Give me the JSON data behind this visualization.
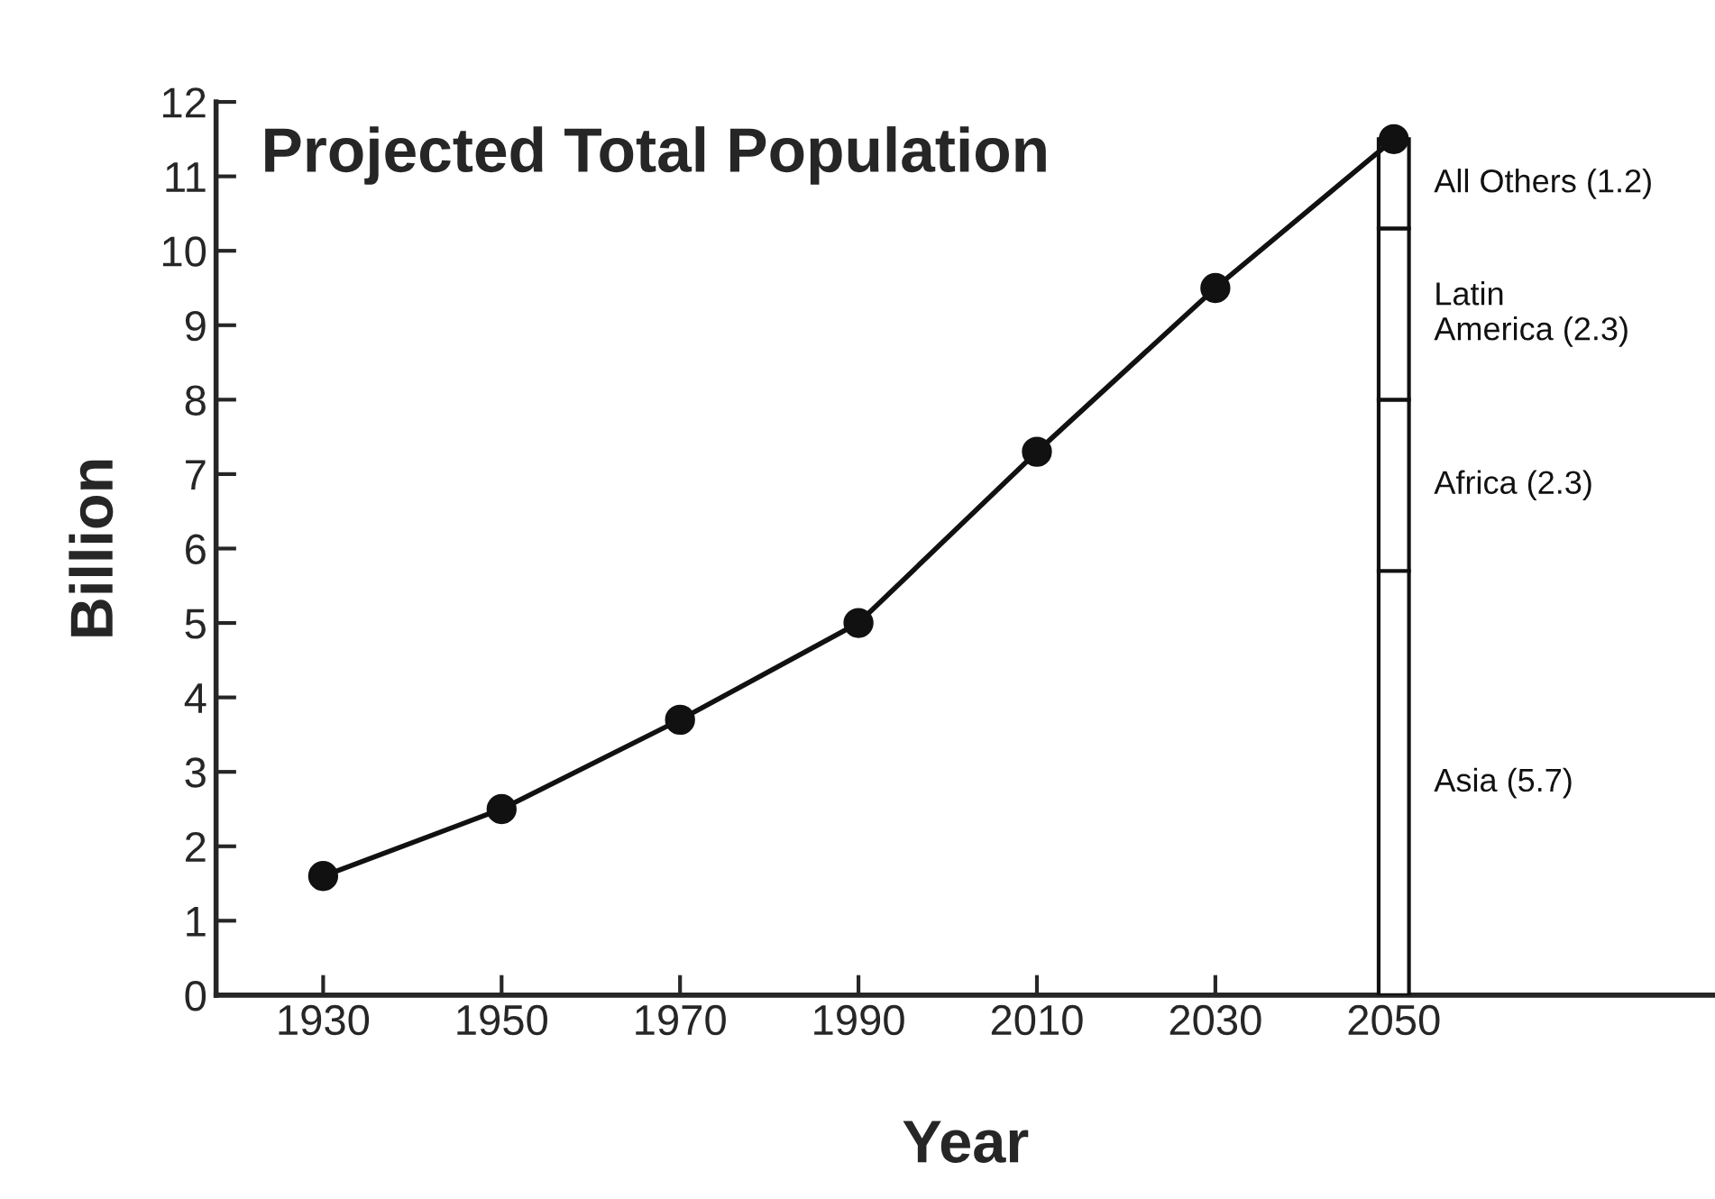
{
  "chart_data": {
    "type": "line",
    "title": "Projected Total Population",
    "xlabel": "Year",
    "ylabel": "Billion",
    "xlim": [
      1918,
      2086
    ],
    "xticks": [
      1930,
      1950,
      1970,
      1990,
      2010,
      2030,
      2050
    ],
    "ylim": [
      0,
      12
    ],
    "yticks": [
      0,
      1,
      2,
      3,
      4,
      5,
      6,
      7,
      8,
      9,
      10,
      11,
      12
    ],
    "marker": "circle",
    "line_style": "solid",
    "grid": false,
    "legend": false,
    "stacked": true,
    "series": [
      {
        "color": "#111111",
        "x": [
          1930,
          1950,
          1970,
          1990,
          2010,
          2030,
          2050
        ],
        "values": [
          1.6,
          2.5,
          3.7,
          5.0,
          7.3,
          9.5,
          11.5
        ]
      },
      {
        "type": "bar",
        "name": "Asia (5.7)",
        "color": "#ffffff",
        "x": [
          2050
        ],
        "values": [
          5.7
        ]
      },
      {
        "type": "bar",
        "name": "Africa (2.3)",
        "color": "#ffffff",
        "x": [
          2050
        ],
        "values": [
          2.3
        ]
      },
      {
        "type": "bar",
        "name": "Latin\nAmerica (2.3)",
        "color": "#ffffff",
        "x": [
          2050
        ],
        "values": [
          2.3
        ]
      },
      {
        "type": "bar",
        "name": "All Others (1.2)",
        "color": "#ffffff",
        "x": [
          2050
        ],
        "values": [
          1.2
        ]
      }
    ]
  }
}
